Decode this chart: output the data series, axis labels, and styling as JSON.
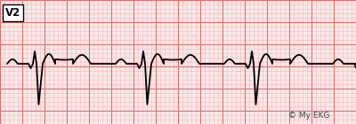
{
  "bg_color": "#fce8e8",
  "grid_minor_color": "#f2b8b8",
  "grid_major_color": "#e07070",
  "ecg_color": "#000000",
  "label": "V2",
  "copyright": "© My EKG",
  "figsize": [
    4.0,
    1.4
  ],
  "dpi": 100,
  "ecg_lw": 1.3,
  "xlim": [
    0,
    400
  ],
  "ylim": [
    0,
    140
  ],
  "baseline_y": 72,
  "minor_step": 5,
  "major_step": 25
}
